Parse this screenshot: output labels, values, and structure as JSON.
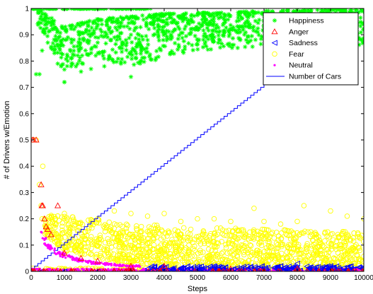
{
  "chart_data": {
    "type": "scatter",
    "title": "",
    "xlabel": "Steps",
    "ylabel": "# of Drivers w/Emotion",
    "xlim": [
      0,
      10000
    ],
    "ylim": [
      0,
      1
    ],
    "x_ticks": [
      "0",
      "1000",
      "2000",
      "3000",
      "4000",
      "5000",
      "6000",
      "7000",
      "8000",
      "9000",
      "10000"
    ],
    "y_ticks": [
      "0",
      "0.1",
      "0.2",
      "0.3",
      "0.4",
      "0.5",
      "0.6",
      "0.7",
      "0.8",
      "0.9",
      "1"
    ],
    "grid": false,
    "legend_position": "top-right",
    "series": [
      {
        "name": "Happiness",
        "marker": "asterisk",
        "color": "#00ff00",
        "description": "Proportion of drivers with happiness; starts at 1, dips early then clusters between about 0.8 and 1.0",
        "points": [
          [
            100,
            1.0
          ],
          [
            200,
            1.0
          ],
          [
            300,
            1.0
          ],
          [
            400,
            0.92
          ],
          [
            500,
            0.87
          ],
          [
            600,
            0.85
          ],
          [
            700,
            0.83
          ],
          [
            800,
            0.79
          ],
          [
            900,
            0.78
          ],
          [
            1000,
            0.72
          ],
          [
            1200,
            0.81
          ],
          [
            1500,
            0.85
          ],
          [
            2000,
            0.87
          ],
          [
            2500,
            0.89
          ],
          [
            3000,
            0.9
          ],
          [
            3500,
            0.88
          ],
          [
            4000,
            0.91
          ],
          [
            5000,
            0.92
          ],
          [
            6000,
            0.92
          ],
          [
            7000,
            0.93
          ],
          [
            8000,
            0.93
          ],
          [
            9000,
            0.93
          ],
          [
            10000,
            0.94
          ]
        ],
        "band_upper": [
          [
            200,
            1.0
          ],
          [
            1000,
            0.93
          ],
          [
            2000,
            0.96
          ],
          [
            4000,
            0.98
          ],
          [
            7000,
            0.99
          ],
          [
            10000,
            1.0
          ]
        ],
        "band_lower": [
          [
            200,
            0.93
          ],
          [
            1000,
            0.76
          ],
          [
            2000,
            0.81
          ],
          [
            3000,
            0.78
          ],
          [
            5000,
            0.84
          ],
          [
            7000,
            0.85
          ],
          [
            10000,
            0.86
          ]
        ],
        "outliers": [
          [
            150,
            0.75
          ],
          [
            250,
            0.75
          ],
          [
            330,
            0.84
          ],
          [
            1000,
            0.72
          ],
          [
            1200,
            0.78
          ],
          [
            1500,
            0.76
          ],
          [
            1800,
            0.77
          ],
          [
            2200,
            0.78
          ],
          [
            2700,
            0.79
          ],
          [
            3000,
            0.74
          ],
          [
            3300,
            0.8
          ]
        ]
      },
      {
        "name": "Anger",
        "marker": "triangle-up",
        "color": "#ff0000",
        "description": "Proportion of drivers with anger; a few early high values then near 0",
        "points": [
          [
            40,
            0.5
          ],
          [
            80,
            0.5
          ],
          [
            150,
            0.5
          ],
          [
            300,
            0.33
          ],
          [
            320,
            0.25
          ],
          [
            350,
            0.25
          ],
          [
            400,
            0.2
          ],
          [
            450,
            0.17
          ],
          [
            500,
            0.16
          ],
          [
            600,
            0.14
          ],
          [
            800,
            0.25
          ],
          [
            1000,
            0.07
          ],
          [
            1500,
            0.05
          ],
          [
            2000,
            0.04
          ],
          [
            3000,
            0.02
          ],
          [
            4000,
            0.02
          ],
          [
            6000,
            0.01
          ],
          [
            8000,
            0.01
          ],
          [
            10000,
            0.0
          ]
        ]
      },
      {
        "name": "Sadness",
        "marker": "triangle-left",
        "color": "#0000ff",
        "description": "Proportion of drivers with sadness; concentrated near 0",
        "points": [
          [
            300,
            0.0
          ],
          [
            1000,
            0.0
          ],
          [
            2000,
            0.0
          ],
          [
            3500,
            0.01
          ],
          [
            4500,
            0.01
          ],
          [
            5500,
            0.02
          ],
          [
            6500,
            0.01
          ],
          [
            7500,
            0.02
          ],
          [
            8000,
            0.03
          ],
          [
            9000,
            0.02
          ],
          [
            10000,
            0.01
          ]
        ]
      },
      {
        "name": "Fear",
        "marker": "circle",
        "color": "#ffff00",
        "description": "Proportion of drivers with fear; early high values decaying into a band roughly 0.02 to 0.2",
        "points": [
          [
            40,
            0.5
          ],
          [
            150,
            0.5
          ],
          [
            250,
            0.33
          ],
          [
            300,
            0.25
          ],
          [
            330,
            0.2
          ],
          [
            350,
            0.4
          ],
          [
            400,
            0.2
          ],
          [
            500,
            0.14
          ],
          [
            800,
            0.13
          ],
          [
            1000,
            0.22
          ],
          [
            1500,
            0.12
          ],
          [
            2000,
            0.2
          ],
          [
            2500,
            0.23
          ],
          [
            3000,
            0.22
          ],
          [
            3500,
            0.21
          ],
          [
            4000,
            0.22
          ],
          [
            4500,
            0.19
          ],
          [
            5000,
            0.2
          ],
          [
            5500,
            0.2
          ],
          [
            6000,
            0.19
          ],
          [
            6700,
            0.24
          ],
          [
            7000,
            0.19
          ],
          [
            7500,
            0.18
          ],
          [
            8000,
            0.19
          ],
          [
            8200,
            0.25
          ],
          [
            9000,
            0.23
          ],
          [
            9500,
            0.21
          ],
          [
            10000,
            0.2
          ]
        ],
        "band_upper": [
          [
            400,
            0.22
          ],
          [
            1000,
            0.21
          ],
          [
            2000,
            0.2
          ],
          [
            3000,
            0.18
          ],
          [
            5000,
            0.17
          ],
          [
            7000,
            0.16
          ],
          [
            10000,
            0.15
          ]
        ],
        "band_lower": [
          [
            400,
            0.14
          ],
          [
            1000,
            0.08
          ],
          [
            2000,
            0.05
          ],
          [
            3000,
            0.03
          ],
          [
            5000,
            0.02
          ],
          [
            7000,
            0.02
          ],
          [
            10000,
            0.01
          ]
        ]
      },
      {
        "name": "Neutral",
        "marker": "dot",
        "color": "#ff00ff",
        "description": "Proportion of neutral drivers; mostly near 0 with a decaying early curve",
        "points": [
          [
            300,
            0.15
          ],
          [
            400,
            0.12
          ],
          [
            500,
            0.1
          ],
          [
            600,
            0.09
          ],
          [
            700,
            0.08
          ],
          [
            800,
            0.07
          ],
          [
            1000,
            0.06
          ],
          [
            1500,
            0.04
          ],
          [
            2000,
            0.03
          ],
          [
            3000,
            0.02
          ],
          [
            4000,
            0.02
          ],
          [
            5000,
            0.01
          ],
          [
            6000,
            0.01
          ],
          [
            7000,
            0.01
          ],
          [
            8000,
            0.01
          ],
          [
            9000,
            0.0
          ],
          [
            10000,
            0.0
          ]
        ]
      },
      {
        "name": "Number of Cars",
        "marker": "line",
        "color": "#0000ff",
        "description": "Staircase line rising roughly linearly from 0 at step 0 to 1 at step 10000 (normalized)",
        "points": [
          [
            0,
            0.0
          ],
          [
            10000,
            1.0
          ]
        ],
        "steps": 100
      }
    ],
    "colors": {
      "happiness": "#00ff00",
      "anger": "#ff0000",
      "sadness": "#0000ff",
      "fear": "#ffff00",
      "neutral": "#ff00ff",
      "cars": "#0000ff"
    }
  }
}
